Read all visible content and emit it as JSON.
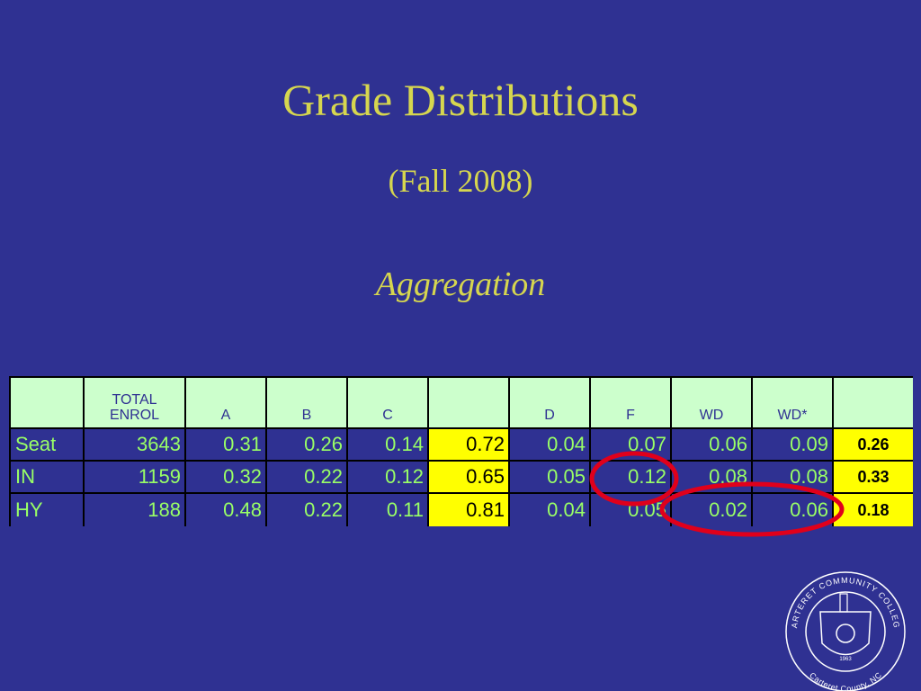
{
  "slide": {
    "title": "Grade Distributions",
    "subtitle": "(Fall 2008)",
    "heading": "Aggregation"
  },
  "table": {
    "header": [
      "",
      "TOTAL ENROL",
      "A",
      "B",
      "C",
      "",
      "D",
      "F",
      "WD",
      "WD*",
      ""
    ],
    "rows": [
      [
        "Seat",
        "3643",
        "0.31",
        "0.26",
        "0.14",
        "0.72",
        "0.04",
        "0.07",
        "0.06",
        "0.09",
        "0.26"
      ],
      [
        "IN",
        "1159",
        "0.32",
        "0.22",
        "0.12",
        "0.65",
        "0.05",
        "0.12",
        "0.08",
        "0.08",
        "0.33"
      ],
      [
        "HY",
        "188",
        "0.48",
        "0.22",
        "0.11",
        "0.81",
        "0.04",
        "0.05",
        "0.02",
        "0.06",
        "0.18"
      ]
    ]
  },
  "logo": {
    "name": "CARTERET COMMUNITY COLLEGE",
    "place": "Carteret County, NC",
    "year": "1963"
  }
}
